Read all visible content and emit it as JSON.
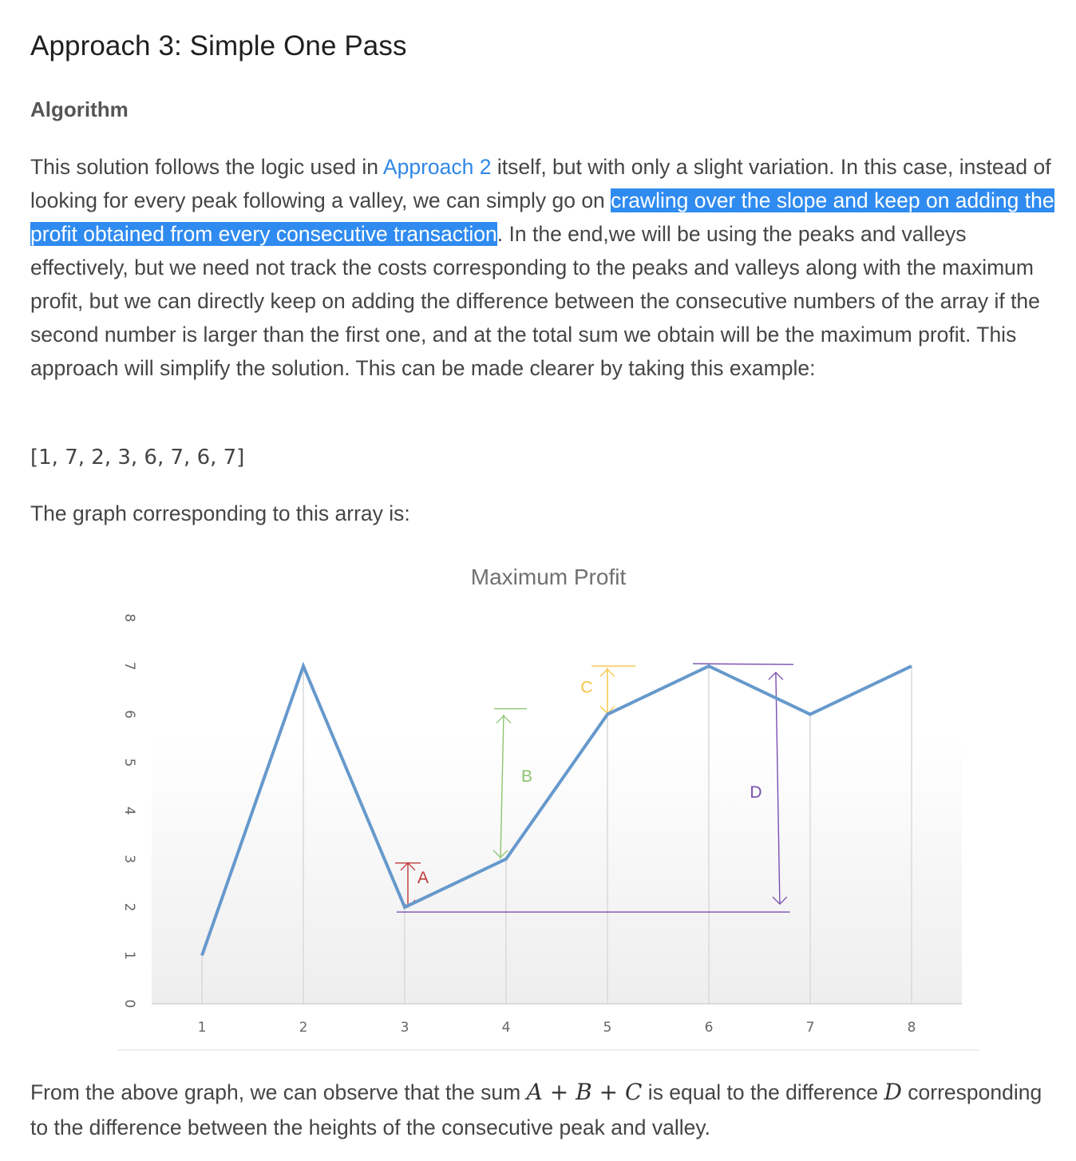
{
  "heading": "Approach 3: Simple One Pass",
  "subheading": "Algorithm",
  "paragraph1": {
    "before_link": "This solution follows the logic used in ",
    "link": "Approach 2",
    "after_link": " itself, but with only a slight variation. In this case, instead of looking for every peak following a valley, we can simply go on ",
    "highlight": "crawling over the slope and keep on adding the profit obtained from every consecutive transaction",
    "after_highlight": ". In the end,we will be using the peaks and valleys effectively, but we need not track the costs corresponding to the peaks and valleys along with the maximum profit, but we can directly keep on adding the difference between the consecutive numbers of the array if the second number is larger than the first one, and at the total sum we obtain will be the maximum profit. This approach will simplify the solution. This can be made clearer by taking this example:"
  },
  "array_text": "[1, 7, 2, 3, 6, 7, 6, 7]",
  "graph_intro": "The graph corresponding to this array is:",
  "paragraph3": {
    "before_math": "From the above graph, we can observe that the sum ",
    "math_a": "A",
    "plus": "+",
    "math_b": "B",
    "math_c": "C",
    "middle": " is equal to the difference ",
    "math_d": "D",
    "after_math": " corresponding to the difference between the heights of the consecutive peak and valley."
  },
  "colors": {
    "line": "#6699cc",
    "A": "#c0393b",
    "B": "#8cc46f",
    "C": "#f7c244",
    "D": "#7a4fb0"
  },
  "chart_data": {
    "type": "line",
    "title": "Maximum Profit",
    "x": [
      1,
      2,
      3,
      4,
      5,
      6,
      7,
      8
    ],
    "values": [
      1,
      7,
      2,
      3,
      6,
      7,
      6,
      7
    ],
    "xticks": [
      "1",
      "2",
      "3",
      "4",
      "5",
      "6",
      "7",
      "8"
    ],
    "yticks": [
      "0",
      "1",
      "2",
      "3",
      "4",
      "5",
      "6",
      "7",
      "8"
    ],
    "ylim": [
      0,
      8
    ],
    "grid": "vertical",
    "annotations": [
      {
        "label": "A",
        "from": 2,
        "to": 3,
        "at_x": 3
      },
      {
        "label": "B",
        "from": 3,
        "to": 6,
        "at_x": 4
      },
      {
        "label": "C",
        "from": 6,
        "to": 7,
        "at_x": 5
      },
      {
        "label": "D",
        "from": 2,
        "to": 7,
        "at_x": 6.7
      }
    ]
  }
}
